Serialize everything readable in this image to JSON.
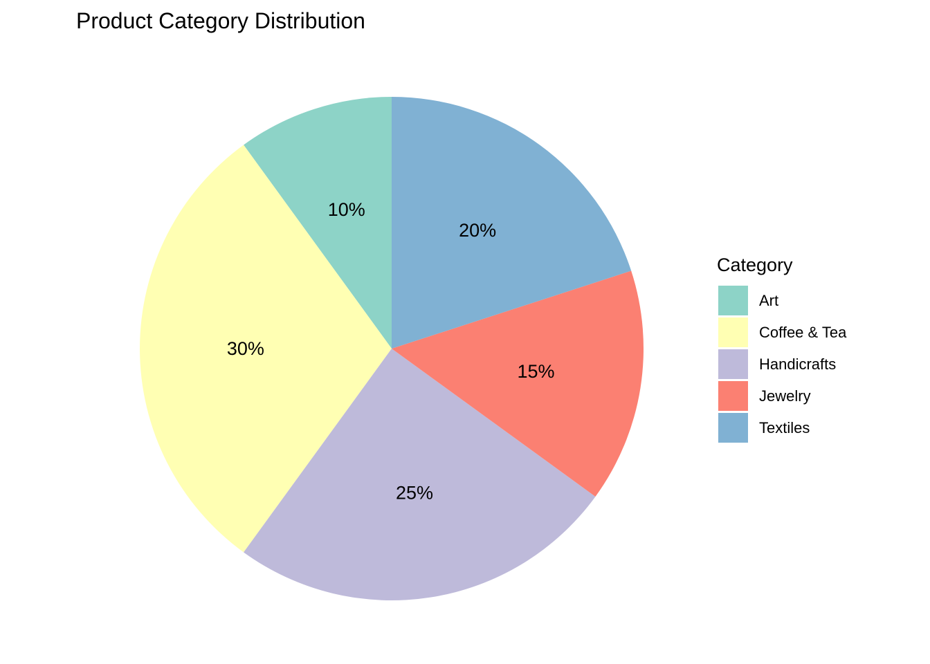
{
  "chart_data": {
    "type": "pie",
    "title": "Product Category Distribution",
    "categories": [
      "Art",
      "Coffee & Tea",
      "Handicrafts",
      "Jewelry",
      "Textiles"
    ],
    "values": [
      10,
      30,
      25,
      15,
      20
    ],
    "labels": [
      "10%",
      "30%",
      "25%",
      "15%",
      "20%"
    ],
    "colors": [
      "#8DD3C7",
      "#FFFFB3",
      "#BEBADA",
      "#FB8072",
      "#80B1D3"
    ],
    "start": "12 o'clock",
    "direction": "counter-clockwise",
    "legend": {
      "title": "Category",
      "position": "right"
    }
  }
}
